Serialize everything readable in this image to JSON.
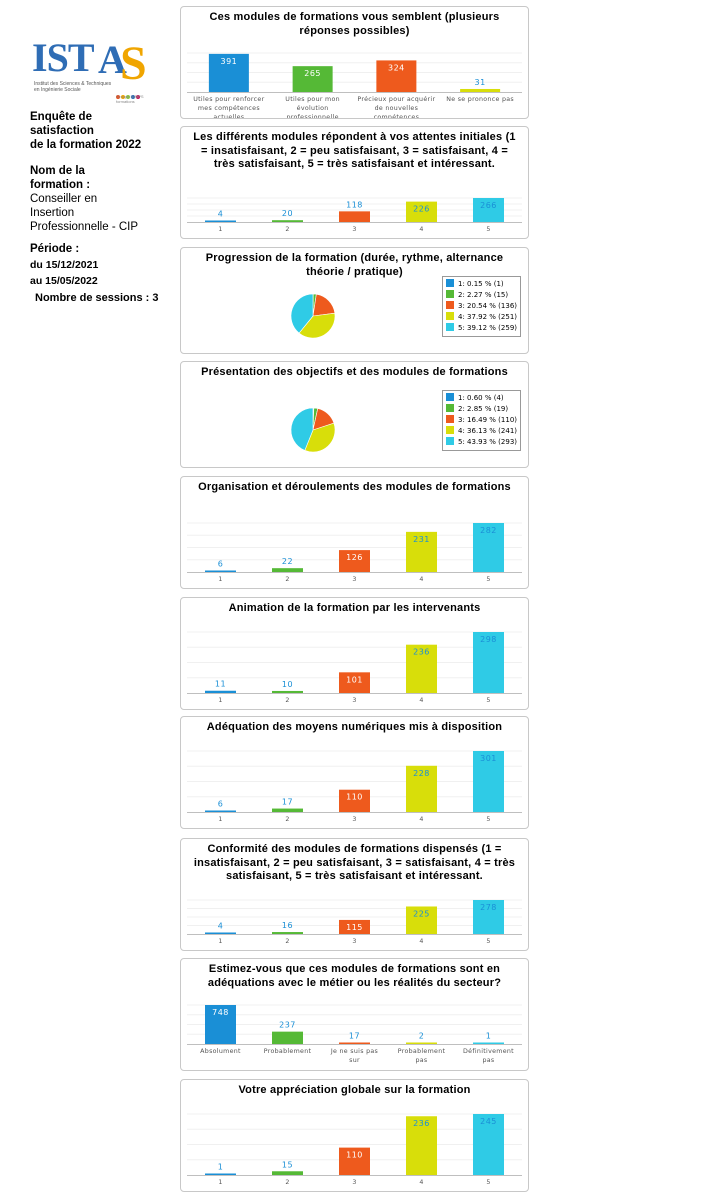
{
  "sidebar": {
    "logo_text": "IST",
    "logo_s": "S",
    "logo_a": "A",
    "logo_sub": "Institut des Sciences & Techniques en Ingénierie Sociale",
    "logo_tag": "Groupe ILIMPS formations",
    "survey_title": [
      "Enquête de",
      "satisfaction",
      "de la formation 2022"
    ],
    "formation_label": [
      "Nom de la",
      "formation :"
    ],
    "formation_name": [
      "Conseiller en",
      "Insertion",
      "Professionnelle - CIP"
    ],
    "period_label": "Période :",
    "period_from": "du 15/12/2021",
    "period_to": "au 15/05/2022",
    "sessions": "Nombre de sessions : 3"
  },
  "colors": {
    "blue": "#1a8fd6",
    "green": "#55b936",
    "orange": "#ee5a1d",
    "yellow": "#d8de0a",
    "cyan": "#2fcbe6"
  },
  "chart_data": [
    {
      "type": "bar",
      "title": "Ces modules de formations vous semblent (plusieurs réponses possibles)",
      "categories": [
        "Utiles pour renforcer mes compétences actuelles",
        "Utiles pour mon évolution professionnelle",
        "Précieux pour acquérir de nouvelles compétences",
        "Ne se prononce pas"
      ],
      "values": [
        391,
        265,
        324,
        31
      ],
      "ylim": [
        0,
        400
      ]
    },
    {
      "type": "bar",
      "title": "Les différents modules répondent à vos attentes initiales (1 = insatisfaisant, 2 = peu satisfaisant, 3 = satisfaisant, 4 = très satisfaisant, 5 = très satisfaisant et intéressant.",
      "categories": [
        "1",
        "2",
        "3",
        "4",
        "5"
      ],
      "values": [
        4,
        20,
        118,
        226,
        266
      ],
      "ylim": [
        0,
        266
      ]
    },
    {
      "type": "pie",
      "title": "Progression de la formation (durée, rythme, alternance théorie / pratique)",
      "categories": [
        "1",
        "2",
        "3",
        "4",
        "5"
      ],
      "values": [
        1,
        15,
        136,
        251,
        259
      ],
      "legend": [
        "1:  0.15 % (1)",
        "2:  2.27 % (15)",
        "3:  20.54 % (136)",
        "4:  37.92 % (251)",
        "5:  39.12 % (259)"
      ]
    },
    {
      "type": "pie",
      "title": "Présentation des objectifs et des modules de formations",
      "categories": [
        "1",
        "2",
        "3",
        "4",
        "5"
      ],
      "values": [
        4,
        19,
        110,
        241,
        293
      ],
      "legend": [
        "1:  0.60 % (4)",
        "2:  2.85 % (19)",
        "3:  16.49 % (110)",
        "4:  36.13 % (241)",
        "5:  43.93 % (293)"
      ]
    },
    {
      "type": "bar",
      "title": "Organisation et déroulements des modules de formations",
      "categories": [
        "1",
        "2",
        "3",
        "4",
        "5"
      ],
      "values": [
        6,
        22,
        126,
        231,
        282
      ],
      "ylim": [
        0,
        282
      ]
    },
    {
      "type": "bar",
      "title": "Animation de la formation par les intervenants",
      "categories": [
        "1",
        "2",
        "3",
        "4",
        "5"
      ],
      "values": [
        11,
        10,
        101,
        236,
        298
      ],
      "ylim": [
        0,
        298
      ]
    },
    {
      "type": "bar",
      "title": "Adéquation des moyens numériques mis à disposition",
      "categories": [
        "1",
        "2",
        "3",
        "4",
        "5"
      ],
      "values": [
        6,
        17,
        110,
        228,
        301
      ],
      "ylim": [
        0,
        301
      ]
    },
    {
      "type": "bar",
      "title": "Conformité des modules de formations dispensés (1 = insatisfaisant, 2 = peu satisfaisant, 3 = satisfaisant, 4 = très satisfaisant, 5 = très satisfaisant et intéressant.",
      "categories": [
        "1",
        "2",
        "3",
        "4",
        "5"
      ],
      "values": [
        4,
        16,
        115,
        225,
        278
      ],
      "ylim": [
        0,
        278
      ]
    },
    {
      "type": "bar",
      "title": "Estimez-vous que ces modules de formations sont en adéquations avec le métier ou les réalités du secteur?",
      "categories": [
        "Absolument",
        "Probablement",
        "Je ne suis pas sur",
        "Probablement pas",
        "Définitivement pas"
      ],
      "values": [
        748,
        237,
        17,
        2,
        1
      ],
      "ylim": [
        0,
        748
      ]
    },
    {
      "type": "bar",
      "title": "Votre appréciation globale sur la formation",
      "categories": [
        "1",
        "2",
        "3",
        "4",
        "5"
      ],
      "values": [
        1,
        15,
        110,
        236,
        245
      ],
      "ylim": [
        0,
        245
      ]
    }
  ]
}
